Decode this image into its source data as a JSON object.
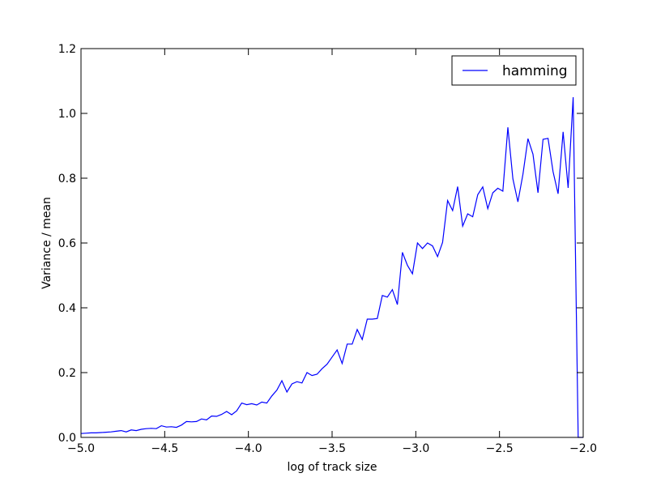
{
  "chart_data": {
    "type": "line",
    "title": "",
    "xlabel": "log of track size",
    "ylabel": "Variance / mean",
    "xlim": [
      -5.0,
      -2.0
    ],
    "ylim": [
      0.0,
      1.2
    ],
    "x_ticks": [
      -5.0,
      -4.5,
      -4.0,
      -3.5,
      -3.0,
      -2.5,
      -2.0
    ],
    "x_tick_labels": [
      "−5.0",
      "−4.5",
      "−4.0",
      "−3.5",
      "−3.0",
      "−2.5",
      "−2.0"
    ],
    "y_ticks": [
      0.0,
      0.2,
      0.4,
      0.6,
      0.8,
      1.0,
      1.2
    ],
    "y_tick_labels": [
      "0.0",
      "0.2",
      "0.4",
      "0.6",
      "0.8",
      "1.0",
      "1.2"
    ],
    "grid": false,
    "legend": {
      "position": "top-right",
      "entries": [
        "hamming"
      ]
    },
    "series": [
      {
        "name": "hamming",
        "color": "#0000ff",
        "x": [
          -5.0,
          -4.97,
          -4.94,
          -4.91,
          -4.88,
          -4.85,
          -4.82,
          -4.79,
          -4.76,
          -4.73,
          -4.7,
          -4.67,
          -4.64,
          -4.61,
          -4.58,
          -4.55,
          -4.52,
          -4.49,
          -4.46,
          -4.43,
          -4.4,
          -4.37,
          -4.34,
          -4.31,
          -4.28,
          -4.25,
          -4.22,
          -4.19,
          -4.16,
          -4.13,
          -4.1,
          -4.07,
          -4.04,
          -4.01,
          -3.98,
          -3.95,
          -3.92,
          -3.89,
          -3.86,
          -3.83,
          -3.8,
          -3.77,
          -3.74,
          -3.71,
          -3.68,
          -3.65,
          -3.62,
          -3.59,
          -3.56,
          -3.53,
          -3.5,
          -3.47,
          -3.44,
          -3.41,
          -3.38,
          -3.35,
          -3.32,
          -3.29,
          -3.26,
          -3.23,
          -3.2,
          -3.17,
          -3.14,
          -3.11,
          -3.08,
          -3.05,
          -3.02,
          -2.99,
          -2.96,
          -2.93,
          -2.9,
          -2.87,
          -2.84,
          -2.81,
          -2.78,
          -2.75,
          -2.72,
          -2.69,
          -2.66,
          -2.63,
          -2.6,
          -2.57,
          -2.54,
          -2.51,
          -2.48,
          -2.45,
          -2.42,
          -2.39,
          -2.36,
          -2.33,
          -2.3,
          -2.27,
          -2.24,
          -2.21,
          -2.18,
          -2.15,
          -2.12,
          -2.09,
          -2.06,
          -2.03,
          -2.0
        ],
        "values": [
          0.012,
          0.013,
          0.014,
          0.014,
          0.015,
          0.016,
          0.017,
          0.019,
          0.021,
          0.017,
          0.023,
          0.021,
          0.025,
          0.027,
          0.028,
          0.027,
          0.036,
          0.032,
          0.033,
          0.031,
          0.038,
          0.049,
          0.048,
          0.049,
          0.057,
          0.054,
          0.066,
          0.065,
          0.071,
          0.08,
          0.07,
          0.082,
          0.106,
          0.101,
          0.104,
          0.1,
          0.109,
          0.106,
          0.128,
          0.146,
          0.175,
          0.14,
          0.165,
          0.172,
          0.168,
          0.2,
          0.191,
          0.195,
          0.212,
          0.226,
          0.248,
          0.27,
          0.228,
          0.288,
          0.288,
          0.333,
          0.302,
          0.365,
          0.365,
          0.367,
          0.438,
          0.433,
          0.456,
          0.41,
          0.571,
          0.531,
          0.505,
          0.6,
          0.583,
          0.6,
          0.591,
          0.558,
          0.602,
          0.731,
          0.7,
          0.774,
          0.652,
          0.69,
          0.681,
          0.749,
          0.773,
          0.706,
          0.755,
          0.769,
          0.76,
          0.957,
          0.798,
          0.727,
          0.812,
          0.922,
          0.874,
          0.755,
          0.92,
          0.923,
          0.82,
          0.752,
          0.943,
          0.77,
          1.05,
          0.0,
          0.0
        ]
      }
    ]
  }
}
